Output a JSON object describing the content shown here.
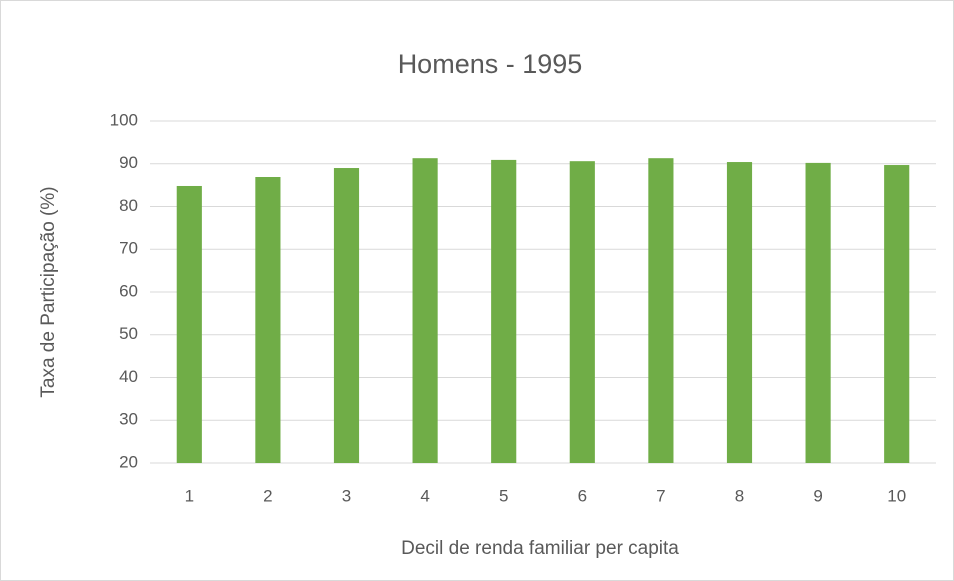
{
  "chart_data": {
    "type": "bar",
    "title": "Homens - 1995",
    "x_label": "Decil de renda familiar per capita",
    "y_label": "Taxa de Participação (%)",
    "categories": [
      "1",
      "2",
      "3",
      "4",
      "5",
      "6",
      "7",
      "8",
      "9",
      "10"
    ],
    "values": [
      84.8,
      86.9,
      89.0,
      91.3,
      90.9,
      90.6,
      91.3,
      90.4,
      90.2,
      89.7
    ],
    "color": "#70ad47",
    "ylim": [
      20,
      100
    ],
    "yticks": [
      20,
      30,
      40,
      50,
      60,
      70,
      80,
      90,
      100
    ],
    "grid": true
  }
}
